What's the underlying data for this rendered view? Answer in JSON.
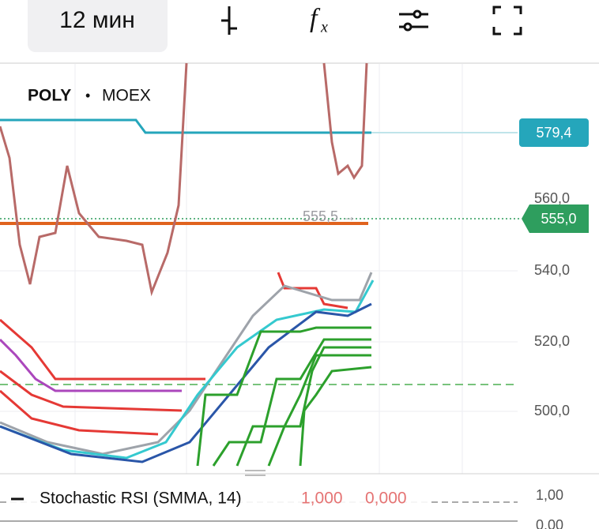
{
  "toolbar": {
    "interval": "12 мин",
    "function_icon": {
      "main": "f",
      "sub": "x"
    }
  },
  "chart": {
    "symbol": "POLY",
    "separator": "•",
    "exchange": "MOEX",
    "price_axis": [
      "560,0",
      "540,0",
      "520,0",
      "500,0"
    ],
    "price_tags": {
      "upper": "579,4",
      "current": "555,0"
    },
    "marker": "555,5 →"
  },
  "indicator": {
    "name": "Stochastic RSI (SMMA, 14)",
    "value_k": "1,000",
    "value_d": "0,000",
    "axis": [
      "1,00",
      "0,00"
    ]
  }
}
